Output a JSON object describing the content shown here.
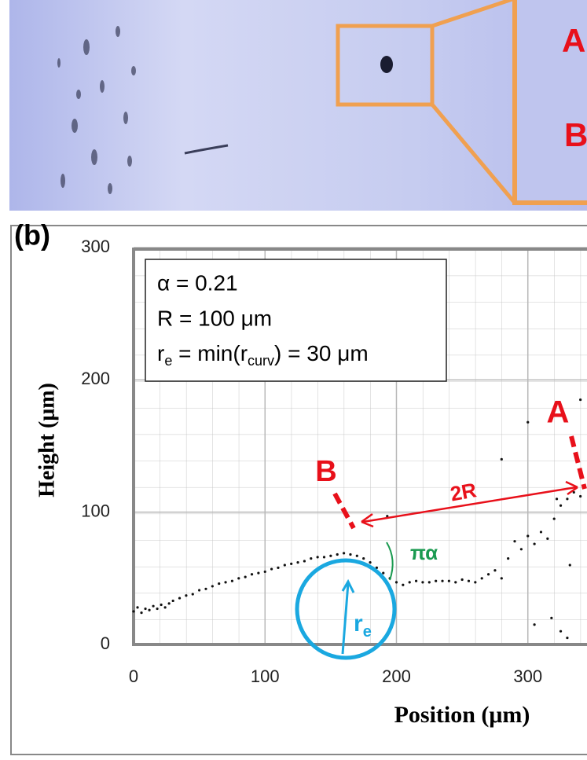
{
  "photo": {
    "labels": [
      "A",
      "B"
    ]
  },
  "chart_data": {
    "type": "scatter",
    "panel_label": "(b)",
    "x_label": "Position (μm)",
    "y_label": "Height (μm)",
    "xlim": [
      0,
      345
    ],
    "ylim": [
      0,
      300
    ],
    "xticks": [
      0,
      100,
      200,
      300
    ],
    "yticks": [
      0,
      100,
      200,
      300
    ],
    "grid": true,
    "color": "#111111",
    "x": [
      0,
      3,
      6,
      9,
      12,
      15,
      18,
      21,
      24,
      27,
      30,
      35,
      40,
      45,
      50,
      55,
      60,
      65,
      70,
      75,
      80,
      85,
      90,
      95,
      100,
      105,
      110,
      115,
      120,
      125,
      130,
      135,
      140,
      145,
      150,
      155,
      160,
      165,
      170,
      175,
      180,
      185,
      190,
      195,
      200,
      205,
      210,
      215,
      220,
      225,
      230,
      235,
      240,
      245,
      250,
      255,
      260,
      265,
      270,
      275,
      280,
      285,
      290,
      295,
      300,
      305,
      310,
      315,
      320,
      325,
      330,
      335,
      340,
      193,
      300,
      322,
      318,
      325,
      330,
      280,
      305,
      340,
      332
    ],
    "y": [
      25,
      28,
      24,
      27,
      26,
      29,
      27,
      30,
      28,
      31,
      33,
      35,
      37,
      38,
      41,
      42,
      44,
      46,
      47,
      48,
      50,
      51,
      53,
      54,
      55,
      57,
      58,
      60,
      61,
      62,
      63,
      65,
      66,
      66,
      67,
      68,
      69,
      68,
      67,
      65,
      62,
      58,
      54,
      50,
      47,
      45,
      47,
      48,
      47,
      47,
      48,
      48,
      48,
      47,
      49,
      48,
      47,
      50,
      53,
      56,
      50,
      65,
      78,
      72,
      82,
      76,
      85,
      80,
      95,
      105,
      110,
      115,
      112,
      97,
      168,
      110,
      20,
      10,
      5,
      140,
      15,
      185,
      60
    ],
    "annotations": {
      "alpha": "α = 0.21",
      "R": "R = 100 μm",
      "re": [
        "r",
        "e",
        " = min(r",
        "curv",
        ") = 30 μm"
      ],
      "point_B": "B",
      "point_A": "A",
      "distance": "2R",
      "angle": "πα",
      "radius": [
        "r",
        "e"
      ]
    }
  }
}
